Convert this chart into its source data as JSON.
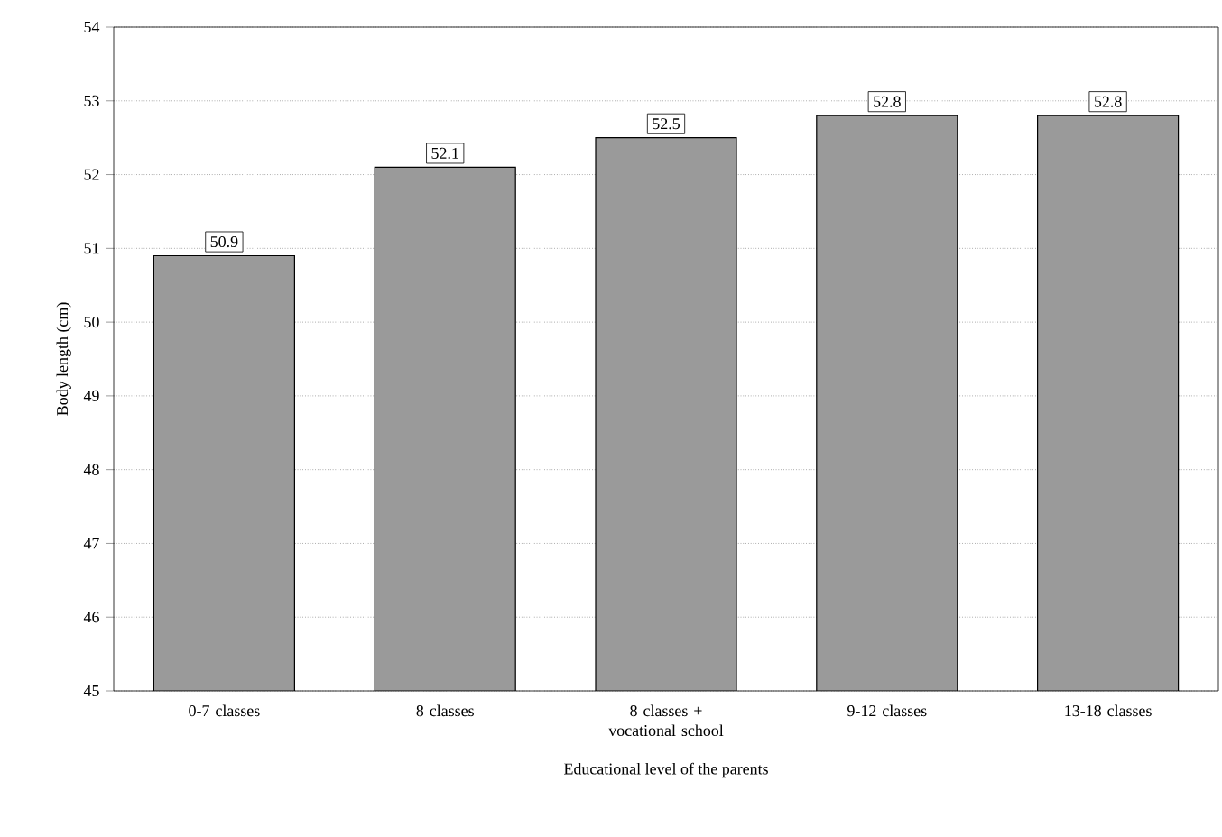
{
  "chart_data": {
    "type": "bar",
    "xlabel": "Educational level of the parents",
    "ylabel": "Body length (cm)",
    "categories": [
      "0-7 classes",
      "8 classes",
      "8 classes + vocational school",
      "9-12 classes",
      "13-18 classes"
    ],
    "values": [
      50.9,
      52.1,
      52.5,
      52.8,
      52.8
    ],
    "color": "#9a9a9a",
    "ylim": [
      45,
      54
    ],
    "yticks": [
      45,
      46,
      47,
      48,
      49,
      50,
      51,
      52,
      53,
      54
    ],
    "grid": "y",
    "data_labels": true
  }
}
